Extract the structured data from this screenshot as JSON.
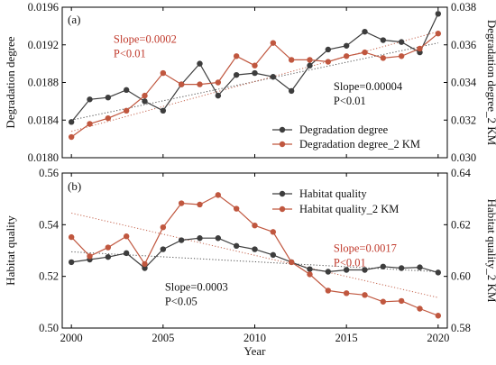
{
  "chart_data": [
    {
      "type": "line",
      "panel_label": "(a)",
      "x": [
        2000,
        2001,
        2002,
        2003,
        2004,
        2005,
        2006,
        2007,
        2008,
        2009,
        2010,
        2011,
        2012,
        2013,
        2014,
        2015,
        2016,
        2017,
        2018,
        2019,
        2020
      ],
      "xlabel": "",
      "xlim": [
        1999.5,
        2020.5
      ],
      "ylabel": "Degradation degree",
      "ylim": [
        0.018,
        0.0196
      ],
      "yticks": [
        "0.0180",
        "0.0184",
        "0.0188",
        "0.0192",
        "0.0196"
      ],
      "y2label": "Degradation degree_2 KM",
      "y2lim": [
        0.03,
        0.038
      ],
      "y2ticks": [
        "0.030",
        "0.032",
        "0.034",
        "0.036",
        "0.038"
      ],
      "series": [
        {
          "name": "Degradation degree",
          "axis": "left",
          "color": "#3d3d3d",
          "values": [
            0.01838,
            0.01862,
            0.01864,
            0.01872,
            0.0186,
            0.0185,
            0.01878,
            0.019,
            0.01866,
            0.01888,
            0.0189,
            0.01886,
            0.01871,
            0.01898,
            0.01915,
            0.01919,
            0.01934,
            0.01925,
            0.01923,
            0.01912,
            0.01953
          ]
        },
        {
          "name": "Degradation degree_2 KM",
          "axis": "right",
          "color": "#c0573f",
          "values": [
            0.0311,
            0.0318,
            0.0321,
            0.0325,
            0.0333,
            0.0345,
            0.0339,
            0.0339,
            0.034,
            0.0354,
            0.0349,
            0.0361,
            0.0352,
            0.0352,
            0.0351,
            0.0354,
            0.0356,
            0.0353,
            0.0354,
            0.0358,
            0.0366
          ]
        }
      ],
      "trendlines": [
        {
          "axis": "left",
          "color": "#3d3d3d",
          "from": [
            2000,
            0.0184
          ],
          "to": [
            2020,
            0.01922
          ]
        },
        {
          "axis": "right",
          "color": "#c0573f",
          "from": [
            2000,
            0.0314
          ],
          "to": [
            2020,
            0.0367
          ]
        }
      ],
      "annotations": [
        {
          "lines": [
            "Slope=0.0002",
            "P<0.01"
          ],
          "color": "#c0392b",
          "anchor": [
            2002.3,
            0.01922
          ]
        },
        {
          "lines": [
            "Slope=0.00004",
            "P<0.01"
          ],
          "color": "#111111",
          "anchor": [
            2014.3,
            0.01872
          ]
        }
      ],
      "legend_position": "lower-right"
    },
    {
      "type": "line",
      "panel_label": "(b)",
      "x": [
        2000,
        2001,
        2002,
        2003,
        2004,
        2005,
        2006,
        2007,
        2008,
        2009,
        2010,
        2011,
        2012,
        2013,
        2014,
        2015,
        2016,
        2017,
        2018,
        2019,
        2020
      ],
      "xlabel": "Year",
      "xlim": [
        1999.5,
        2020.5
      ],
      "xticks": [
        "2000",
        "2005",
        "2010",
        "2015",
        "2020"
      ],
      "ylabel": "Habitat quality",
      "ylim": [
        0.5,
        0.56
      ],
      "yticks": [
        "0.50",
        "0.52",
        "0.54",
        "0.56"
      ],
      "y2label": "Habitat quality_2 KM",
      "y2lim": [
        0.58,
        0.64
      ],
      "y2ticks": [
        "0.58",
        "0.60",
        "0.62",
        "0.64"
      ],
      "series": [
        {
          "name": "Habitat quality",
          "axis": "left",
          "color": "#3d3d3d",
          "values": [
            0.5255,
            0.5265,
            0.5275,
            0.529,
            0.5232,
            0.5305,
            0.534,
            0.5348,
            0.5348,
            0.5318,
            0.5305,
            0.5283,
            0.5255,
            0.5228,
            0.5218,
            0.5225,
            0.5225,
            0.5238,
            0.5232,
            0.5235,
            0.5215
          ]
        },
        {
          "name": "Habitat quality_2 KM",
          "axis": "right",
          "color": "#c0573f",
          "values": [
            0.6152,
            0.6078,
            0.6112,
            0.6155,
            0.6048,
            0.619,
            0.6283,
            0.6278,
            0.6315,
            0.6262,
            0.6197,
            0.6172,
            0.6055,
            0.6008,
            0.5945,
            0.5935,
            0.5928,
            0.5902,
            0.5905,
            0.5875,
            0.5848
          ]
        }
      ],
      "trendlines": [
        {
          "axis": "left",
          "color": "#3d3d3d",
          "from": [
            2000,
            0.5295
          ],
          "to": [
            2020,
            0.5218
          ]
        },
        {
          "axis": "right",
          "color": "#c0573f",
          "from": [
            2000,
            0.6245
          ],
          "to": [
            2020,
            0.5918
          ]
        }
      ],
      "annotations": [
        {
          "lines": [
            "Slope=0.0017",
            "P<0.01"
          ],
          "color": "#c0392b",
          "anchor": [
            2014.3,
            0.5295
          ]
        },
        {
          "lines": [
            "Slope=0.0003",
            "P<0.05"
          ],
          "color": "#111111",
          "anchor": [
            2005.1,
            0.5144
          ]
        }
      ],
      "legend_position": "upper-right"
    }
  ]
}
